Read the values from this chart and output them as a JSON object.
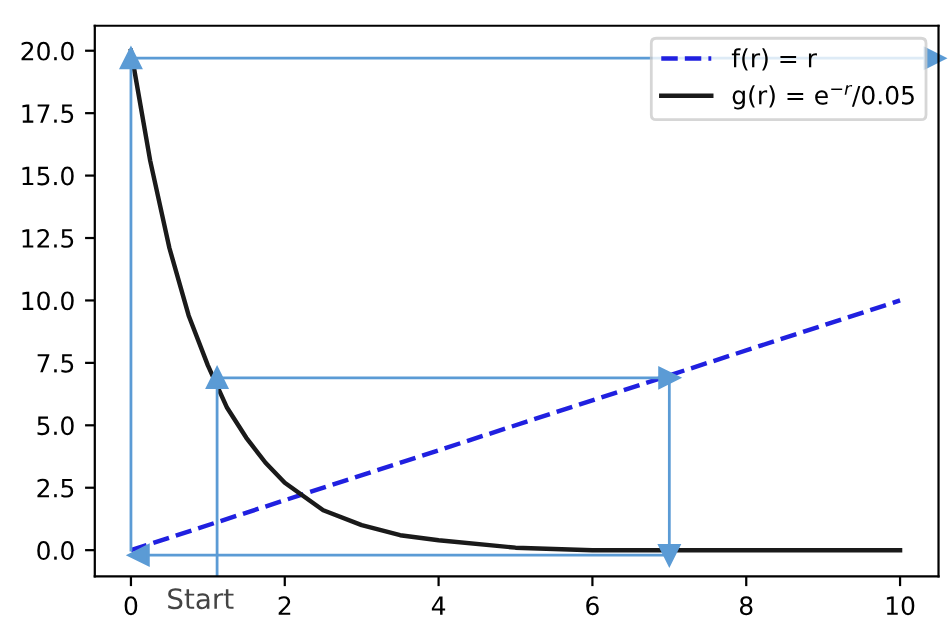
{
  "chart_data": {
    "type": "line",
    "xlim": [
      -0.47,
      10.5
    ],
    "ylim": [
      -1.05,
      21.0
    ],
    "xticks": [
      0,
      2,
      4,
      6,
      8,
      10
    ],
    "yticks": [
      {
        "value": 0,
        "label": "0.0"
      },
      {
        "value": 2.5,
        "label": "2.5"
      },
      {
        "value": 5,
        "label": "5.0"
      },
      {
        "value": 7.5,
        "label": "7.5"
      },
      {
        "value": 10,
        "label": "10.0"
      },
      {
        "value": 12.5,
        "label": "12.5"
      },
      {
        "value": 15,
        "label": "15.0"
      },
      {
        "value": 17.5,
        "label": "17.5"
      },
      {
        "value": 20,
        "label": "20.0"
      }
    ],
    "grid": false,
    "legend": "top right",
    "series": [
      {
        "name": "f(r) = r",
        "color": "#2020e0",
        "line_style": "dashed",
        "x": [
          0,
          10
        ],
        "values": [
          0,
          10
        ]
      },
      {
        "name": "g(r) = e$^{−r}$/0.05",
        "color": "#1a1a1a",
        "line_style": "solid",
        "x": [
          0,
          0.25,
          0.5,
          0.75,
          1,
          1.25,
          1.5,
          1.75,
          2,
          2.5,
          3,
          3.5,
          4,
          5,
          6,
          7,
          8,
          10
        ],
        "values": [
          20,
          15.6,
          12.1,
          9.4,
          7.4,
          5.7,
          4.5,
          3.5,
          2.7,
          1.6,
          1.0,
          0.6,
          0.4,
          0.1,
          0,
          0,
          0,
          0
        ]
      },
      {
        "color": "#5b9bd5",
        "line_style": "solid",
        "marker": "triangle",
        "x": [
          0,
          0,
          10.45
        ],
        "values": [
          0,
          19.7,
          19.7
        ]
      },
      {
        "color": "#5b9bd5",
        "line_style": "solid",
        "marker": "triangle",
        "x": [
          1.12,
          1.12,
          7,
          7,
          0.1
        ],
        "values": [
          -1.0,
          6.9,
          6.9,
          -0.2,
          -0.2
        ]
      }
    ],
    "annotations": [
      "Start"
    ]
  }
}
